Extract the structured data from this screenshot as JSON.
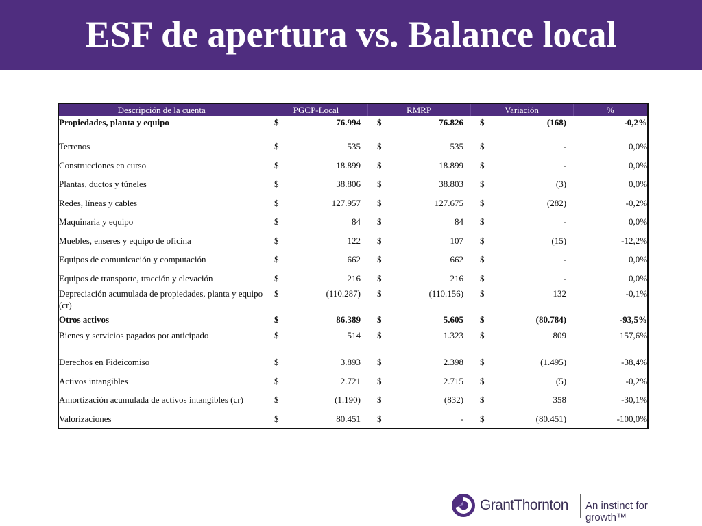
{
  "title": "ESF de apertura vs. Balance local",
  "table": {
    "headers": [
      "Descripción de la cuenta",
      "PGCP-Local",
      "RMRP",
      "Variación",
      "%"
    ],
    "rows": [
      {
        "desc": "Propiedades, planta y equipo",
        "c1": "$",
        "v1": "76.994",
        "c2": "$",
        "v2": "76.826",
        "c3": "$",
        "v3": "(168)",
        "pct": "-0,2%",
        "bold": true
      },
      {
        "desc": "Terrenos",
        "c1": "$",
        "v1": "535",
        "c2": "$",
        "v2": "535",
        "c3": "$",
        "v3": "-",
        "pct": "0,0%"
      },
      {
        "desc": "Construcciones en curso",
        "c1": "$",
        "v1": "18.899",
        "c2": "$",
        "v2": "18.899",
        "c3": "$",
        "v3": "-",
        "pct": "0,0%"
      },
      {
        "desc": "Plantas, ductos y túneles",
        "c1": "$",
        "v1": "38.806",
        "c2": "$",
        "v2": "38.803",
        "c3": "$",
        "v3": "(3)",
        "pct": "0,0%"
      },
      {
        "desc": "Redes, líneas y cables",
        "c1": "$",
        "v1": "127.957",
        "c2": "$",
        "v2": "127.675",
        "c3": "$",
        "v3": "(282)",
        "pct": "-0,2%"
      },
      {
        "desc": "Maquinaria y equipo",
        "c1": "$",
        "v1": "84",
        "c2": "$",
        "v2": "84",
        "c3": "$",
        "v3": "-",
        "pct": "0,0%"
      },
      {
        "desc": "Muebles, enseres y equipo de oficina",
        "c1": "$",
        "v1": "122",
        "c2": "$",
        "v2": "107",
        "c3": "$",
        "v3": "(15)",
        "pct": "-12,2%"
      },
      {
        "desc": "Equipos de comunicación y computación",
        "c1": "$",
        "v1": "662",
        "c2": "$",
        "v2": "662",
        "c3": "$",
        "v3": "-",
        "pct": "0,0%"
      },
      {
        "desc": "Equipos de transporte, tracción y elevación",
        "c1": "$",
        "v1": "216",
        "c2": "$",
        "v2": "216",
        "c3": "$",
        "v3": "-",
        "pct": "0,0%"
      },
      {
        "desc": "Depreciación acumulada de propiedades, planta y equipo (cr)",
        "c1": "$",
        "v1": "(110.287)",
        "c2": "$",
        "v2": "(110.156)",
        "c3": "$",
        "v3": "132",
        "pct": "-0,1%"
      },
      {
        "desc": "Otros activos",
        "c1": "$",
        "v1": "86.389",
        "c2": "$",
        "v2": "5.605",
        "c3": "$",
        "v3": "(80.784)",
        "pct": "-93,5%",
        "bold": true
      },
      {
        "desc": "Bienes y servicios pagados por anticipado",
        "c1": "$",
        "v1": "514",
        "c2": "$",
        "v2": "1.323",
        "c3": "$",
        "v3": "809",
        "pct": "157,6%"
      },
      {
        "desc": "Derechos en Fideicomiso",
        "c1": "$",
        "v1": "3.893",
        "c2": "$",
        "v2": "2.398",
        "c3": "$",
        "v3": "(1.495)",
        "pct": "-38,4%"
      },
      {
        "desc": "Activos intangibles",
        "c1": "$",
        "v1": "2.721",
        "c2": "$",
        "v2": "2.715",
        "c3": "$",
        "v3": "(5)",
        "pct": "-0,2%"
      },
      {
        "desc": "Amortización acumulada de activos intangibles (cr)",
        "c1": "$",
        "v1": "(1.190)",
        "c2": "$",
        "v2": "(832)",
        "c3": "$",
        "v3": "358",
        "pct": "-30,1%"
      },
      {
        "desc": "Valorizaciones",
        "c1": "$",
        "v1": "80.451",
        "c2": "$",
        "v2": "-",
        "c3": "$",
        "v3": "(80.451)",
        "pct": "-100,0%"
      }
    ]
  },
  "footer": {
    "brand": "GrantThornton",
    "tagline": "An instinct for growth™",
    "brand_color": "#4f2d7f"
  }
}
